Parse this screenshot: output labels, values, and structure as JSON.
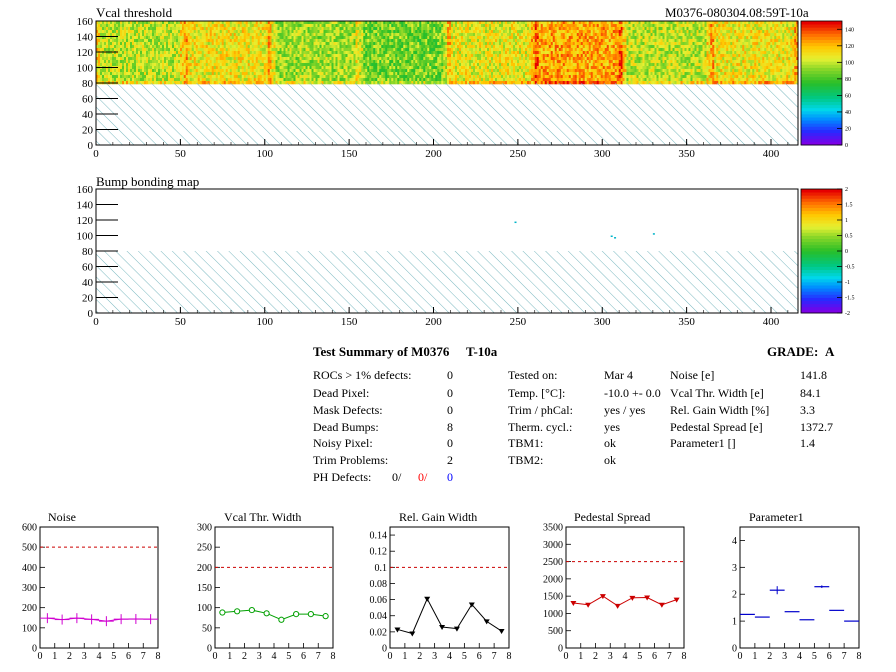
{
  "header": {
    "module_id": "M0376-080304.08:59T-10a"
  },
  "colors": {
    "hatch": "#7ab8c0",
    "ref_line": "#cc0000",
    "noise": "#d000d0",
    "vcal": "#00a000",
    "gain": "#000000",
    "pedestal": "#cc0000",
    "param1": "#0000cc",
    "ph_second": "#ff0000",
    "ph_third": "#0000ff"
  },
  "summary": {
    "title": "Test Summary of M0376",
    "test_label": "T-10a",
    "grade_label": "GRADE:",
    "grade_value": "A",
    "defects": [
      {
        "label": "ROCs > 1% defects:",
        "value": "0"
      },
      {
        "label": "Dead Pixel:",
        "value": "0"
      },
      {
        "label": "Mask Defects:",
        "value": "0"
      },
      {
        "label": "Dead Bumps:",
        "value": "8"
      },
      {
        "label": "Noisy Pixel:",
        "value": "0"
      },
      {
        "label": "Trim Problems:",
        "value": "2"
      }
    ],
    "ph_defects": {
      "label": "PH Defects:",
      "v1": "0/",
      "v2": "0/",
      "v3": "0"
    },
    "conditions": [
      {
        "label": "Tested on:",
        "value": "Mar 4"
      },
      {
        "label": "Temp. [°C]:",
        "value": "-10.0 +- 0.0"
      },
      {
        "label": "Trim / phCal:",
        "value": "yes / yes"
      },
      {
        "label": "Therm. cycl.:",
        "value": "yes"
      },
      {
        "label": "TBM1:",
        "value": "ok"
      },
      {
        "label": "TBM2:",
        "value": "ok"
      }
    ],
    "results": [
      {
        "label": "Noise [e]",
        "value": "141.8"
      },
      {
        "label": "Vcal Thr. Width [e]",
        "value": "84.1"
      },
      {
        "label": "Rel. Gain Width [%]",
        "value": "3.3"
      },
      {
        "label": "Pedestal Spread [e]",
        "value": "1372.7"
      },
      {
        "label": "Parameter1 []",
        "value": "1.4"
      }
    ]
  },
  "chart_data": [
    {
      "id": "vcal_map",
      "type": "heatmap",
      "title": "Vcal threshold",
      "xlim": [
        0,
        416
      ],
      "ylim": [
        0,
        160
      ],
      "xticks": [
        0,
        50,
        100,
        150,
        200,
        250,
        300,
        350,
        400
      ],
      "yticks": [
        0,
        20,
        40,
        60,
        80,
        100,
        120,
        140,
        160
      ],
      "filled_rows": [
        80,
        160
      ],
      "column_blocks": [
        {
          "x": [
            0,
            52
          ],
          "mean": 100
        },
        {
          "x": [
            52,
            104
          ],
          "mean": 110
        },
        {
          "x": [
            104,
            156
          ],
          "mean": 95
        },
        {
          "x": [
            156,
            208
          ],
          "mean": 88
        },
        {
          "x": [
            208,
            260
          ],
          "mean": 108
        },
        {
          "x": [
            260,
            312
          ],
          "mean": 124
        },
        {
          "x": [
            312,
            364
          ],
          "mean": 100
        },
        {
          "x": [
            364,
            416
          ],
          "mean": 110
        }
      ],
      "zlim": [
        0,
        150
      ],
      "palette_ticks": [
        0,
        20,
        40,
        60,
        80,
        100,
        120,
        140
      ]
    },
    {
      "id": "bump_map",
      "type": "heatmap",
      "title": "Bump bonding map",
      "xlim": [
        0,
        416
      ],
      "ylim": [
        0,
        160
      ],
      "xticks": [
        0,
        50,
        100,
        150,
        200,
        250,
        300,
        350,
        400
      ],
      "yticks": [
        0,
        20,
        40,
        60,
        80,
        100,
        120,
        140,
        160
      ],
      "filled_rows": [
        80,
        160
      ],
      "points": [
        [
          248,
          118
        ],
        [
          305,
          100
        ],
        [
          307,
          98
        ],
        [
          330,
          103
        ]
      ],
      "zlim": [
        -2,
        2
      ],
      "palette_ticks": [
        "2",
        "1.5",
        "1",
        "0.5",
        "0",
        "-0.5",
        "-1",
        "-1.5",
        "-2"
      ]
    },
    {
      "id": "noise",
      "type": "scatter",
      "title": "Noise",
      "xlim": [
        0,
        8
      ],
      "ylim": [
        0,
        600
      ],
      "xticks": [
        0,
        1,
        2,
        3,
        4,
        5,
        6,
        7,
        8
      ],
      "yticks": [
        0,
        100,
        200,
        300,
        400,
        500,
        600
      ],
      "ref_line": 500,
      "x": [
        0.5,
        1.5,
        2.5,
        3.5,
        4.5,
        5.5,
        6.5,
        7.5
      ],
      "y": [
        148,
        141,
        148,
        142,
        133,
        143,
        144,
        143
      ],
      "marker": "cross",
      "connect": true
    },
    {
      "id": "vcal_width",
      "type": "line",
      "title": "Vcal Thr. Width",
      "xlim": [
        0,
        8
      ],
      "ylim": [
        0,
        300
      ],
      "xticks": [
        0,
        1,
        2,
        3,
        4,
        5,
        6,
        7,
        8
      ],
      "yticks": [
        0,
        50,
        100,
        150,
        200,
        250,
        300
      ],
      "ref_line": 200,
      "x": [
        0.5,
        1.5,
        2.5,
        3.5,
        4.5,
        5.5,
        6.5,
        7.5
      ],
      "y": [
        88,
        91,
        94,
        86,
        70,
        84,
        84,
        79
      ],
      "marker": "circle",
      "connect": true
    },
    {
      "id": "gain_width",
      "type": "line",
      "title": "Rel. Gain Width",
      "xlim": [
        0,
        8
      ],
      "ylim": [
        0,
        0.15
      ],
      "xticks": [
        0,
        1,
        2,
        3,
        4,
        5,
        6,
        7,
        8
      ],
      "yticks": [
        0,
        0.02,
        0.04,
        0.06,
        0.08,
        0.1,
        0.12,
        0.14
      ],
      "ref_line": 0.1,
      "x": [
        0.5,
        1.5,
        2.5,
        3.5,
        4.5,
        5.5,
        6.5,
        7.5
      ],
      "y": [
        0.023,
        0.018,
        0.061,
        0.026,
        0.024,
        0.054,
        0.033,
        0.021
      ],
      "marker": "triangle-down",
      "connect": true
    },
    {
      "id": "pedestal",
      "type": "line",
      "title": "Pedestal Spread",
      "xlim": [
        0,
        8
      ],
      "ylim": [
        0,
        3500
      ],
      "xticks": [
        0,
        1,
        2,
        3,
        4,
        5,
        6,
        7,
        8
      ],
      "yticks": [
        0,
        500,
        1000,
        1500,
        2000,
        2500,
        3000,
        3500
      ],
      "ref_line": 2500,
      "x": [
        0.5,
        1.5,
        2.5,
        3.5,
        4.5,
        5.5,
        6.5,
        7.5
      ],
      "y": [
        1300,
        1250,
        1500,
        1220,
        1450,
        1460,
        1250,
        1400
      ],
      "marker": "triangle-down",
      "connect": true
    },
    {
      "id": "param1",
      "type": "scatter",
      "title": "Parameter1",
      "xlim": [
        0,
        8
      ],
      "ylim": [
        0,
        4.5
      ],
      "xticks": [
        0,
        1,
        2,
        3,
        4,
        5,
        6,
        7,
        8
      ],
      "yticks": [
        0,
        1,
        2,
        3,
        4
      ],
      "x": [
        0.5,
        1.5,
        2.5,
        3.5,
        4.5,
        5.5,
        6.5,
        7.5
      ],
      "y": [
        1.25,
        1.15,
        2.15,
        1.35,
        1.05,
        2.28,
        1.4,
        1.0
      ],
      "yerr": [
        0,
        0,
        0.15,
        0,
        0,
        0.05,
        0,
        0
      ],
      "marker": "hbar",
      "connect": false
    }
  ]
}
